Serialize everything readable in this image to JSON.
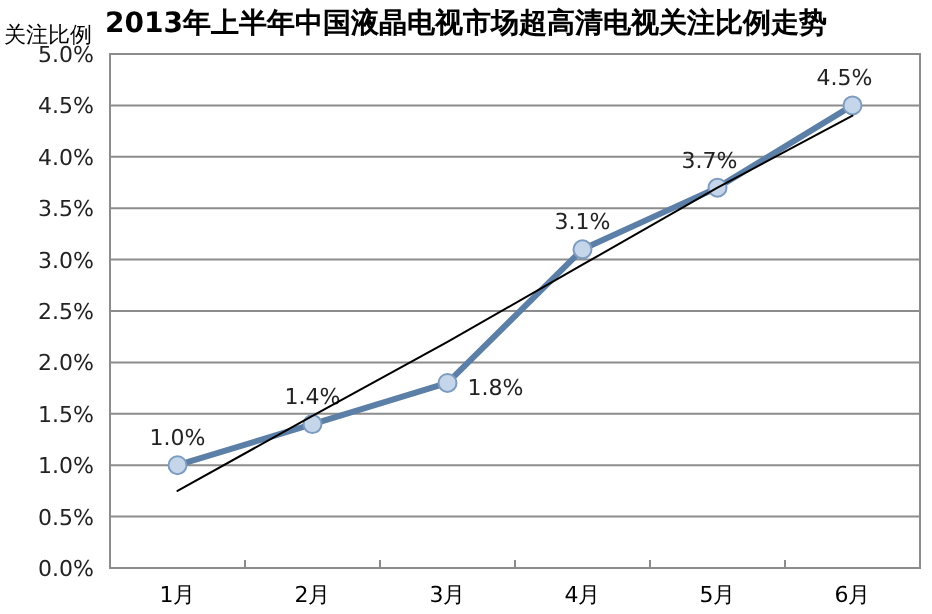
{
  "chart_data": {
    "type": "line",
    "title": "2013年上半年中国液晶电视市场超高清电视关注比例走势",
    "ylabel": "关注比例",
    "categories": [
      "1月",
      "2月",
      "3月",
      "4月",
      "5月",
      "6月"
    ],
    "series": [
      {
        "type": "line",
        "color": "#5b7fa6",
        "values": [
          1.0,
          1.4,
          1.8,
          3.1,
          3.7,
          4.5
        ],
        "marker": "circle",
        "value_labels": [
          "1.0%",
          "1.4%",
          "1.8%",
          "3.1%",
          "3.7%",
          "4.5%"
        ]
      },
      {
        "type": "line",
        "color": "#000000",
        "values": [
          0.75,
          1.48,
          2.2,
          2.95,
          3.7,
          4.4
        ],
        "marker": "none"
      }
    ],
    "ylim": [
      0,
      5
    ],
    "yticks": [
      {
        "value": 0,
        "label": "0.0%"
      },
      {
        "value": 0.5,
        "label": "0.5%"
      },
      {
        "value": 1,
        "label": "1.0%"
      },
      {
        "value": 1.5,
        "label": "1.5%"
      },
      {
        "value": 2,
        "label": "2.0%"
      },
      {
        "value": 2.5,
        "label": "2.5%"
      },
      {
        "value": 3,
        "label": "3.0%"
      },
      {
        "value": 3.5,
        "label": "3.5%"
      },
      {
        "value": 4,
        "label": "4.0%"
      },
      {
        "value": 4.5,
        "label": "4.5%"
      },
      {
        "value": 5,
        "label": "5.0%"
      }
    ],
    "grid": "y"
  }
}
